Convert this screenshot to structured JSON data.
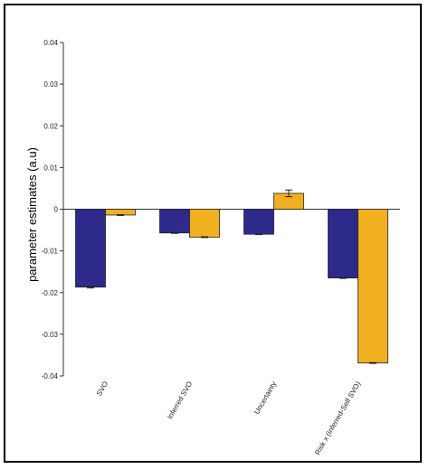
{
  "chart_data": {
    "type": "bar",
    "title": "",
    "xlabel": "",
    "ylabel": "parameter estimates (a.u)",
    "ylim": [
      -0.04,
      0.04
    ],
    "yticks": [
      "0.04",
      "0.03",
      "0.02",
      "0.01",
      "0",
      "-0.01",
      "-0.02",
      "-0.03",
      "-0.04"
    ],
    "ytick_values": [
      0.04,
      0.03,
      0.02,
      0.01,
      0,
      -0.01,
      -0.02,
      -0.03,
      -0.04
    ],
    "categories": [
      "SVO",
      "Inferred SVO",
      "Uncertainty",
      "Risk x (Inferred-Self SVO)"
    ],
    "series": [
      {
        "color": "#2e2a8c",
        "values": [
          -0.0187,
          -0.0057,
          -0.006,
          -0.0165
        ],
        "errors": [
          0.0002,
          0.0001,
          0.0001,
          0.0001
        ]
      },
      {
        "color": "#f0b020",
        "values": [
          -0.0014,
          -0.0067,
          0.0038,
          -0.0369
        ],
        "errors": [
          0.0001,
          0.0001,
          0.0008,
          0.0001
        ]
      }
    ],
    "grid": false,
    "legend": "none"
  }
}
